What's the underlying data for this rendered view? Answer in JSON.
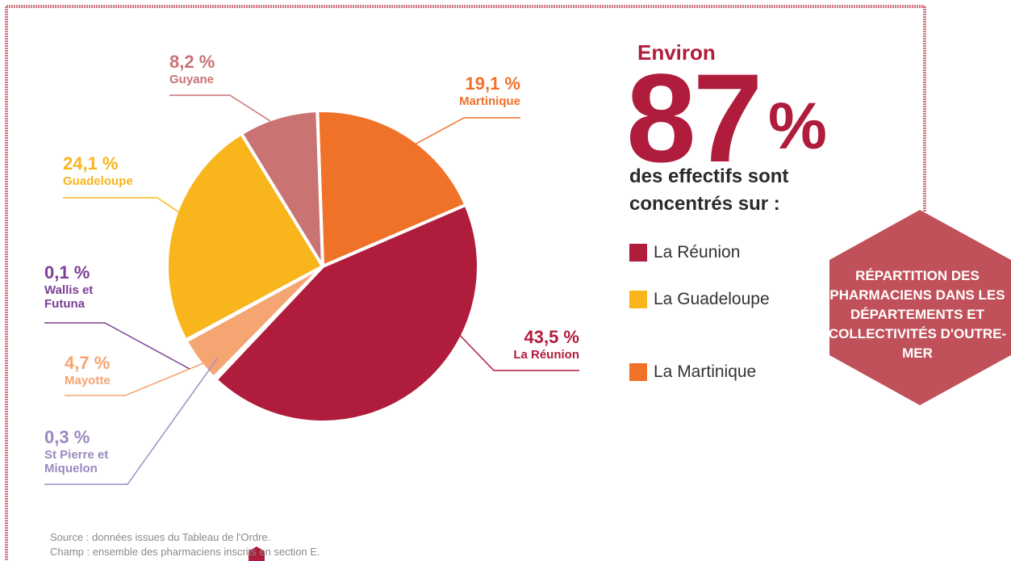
{
  "chart_data": {
    "type": "pie",
    "categories": [
      "Martinique",
      "La Réunion",
      "St Pierre et Miquelon",
      "Mayotte",
      "Wallis et Futuna",
      "Guadeloupe",
      "Guyane"
    ],
    "values": [
      19.1,
      43.5,
      0.3,
      4.7,
      0.1,
      24.1,
      8.2
    ],
    "value_labels": [
      "19,1 %",
      "43,5 %",
      "0,3 %",
      "4,7 %",
      "0,1 %",
      "24,1 %",
      "8,2 %"
    ],
    "colors": [
      "#f07128",
      "#b01c3c",
      "#a08cc4",
      "#f5a572",
      "#7b3f95",
      "#f8b51c",
      "#c97373"
    ]
  },
  "highlight": {
    "prefix": "Environ",
    "value": 87,
    "unit": "%",
    "text": "des effectifs sont concentrés sur :",
    "items": [
      {
        "name": "La Réunion",
        "color": "#b01c3c"
      },
      {
        "name": "La Guadeloupe",
        "color": "#f8b51c"
      },
      {
        "name": "La Martinique",
        "color": "#f07128"
      }
    ]
  },
  "badge": "RÉPARTITION DES PHARMACIENS DANS LES DÉPARTEMENTS ET COLLECTIVITÉS D'OUTRE-MER",
  "source": [
    "Source : données issues du Tableau de l'Ordre.",
    "Champ : ensemble des pharmaciens inscrits en section E."
  ]
}
